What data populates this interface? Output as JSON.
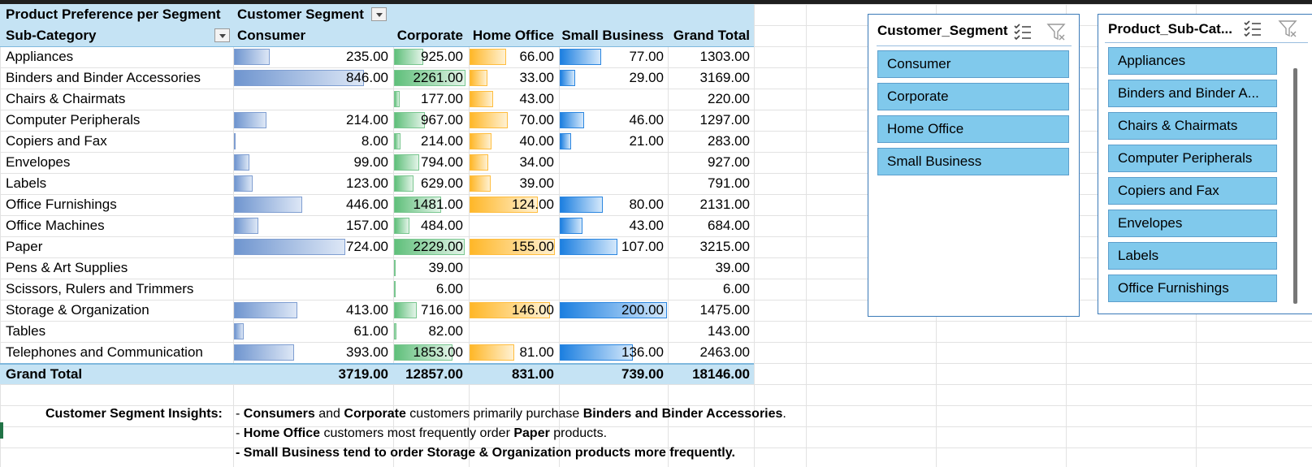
{
  "pivot": {
    "title": "Product Preference per Segment",
    "column_field": "Customer Segment",
    "row_field": "Sub-Category",
    "columns": [
      "Consumer",
      "Corporate",
      "Home Office",
      "Small Business",
      "Grand Total"
    ],
    "rows": [
      {
        "label": "Appliances",
        "consumer": "235.00",
        "corporate": "925.00",
        "home": "66.00",
        "small": "77.00",
        "total": "1303.00",
        "v": [
          235,
          925,
          66,
          77
        ]
      },
      {
        "label": "Binders and Binder Accessories",
        "consumer": "846.00",
        "corporate": "2261.00",
        "home": "33.00",
        "small": "29.00",
        "total": "3169.00",
        "v": [
          846,
          2261,
          33,
          29
        ]
      },
      {
        "label": "Chairs & Chairmats",
        "consumer": "",
        "corporate": "177.00",
        "home": "43.00",
        "small": "",
        "total": "220.00",
        "v": [
          0,
          177,
          43,
          0
        ]
      },
      {
        "label": "Computer Peripherals",
        "consumer": "214.00",
        "corporate": "967.00",
        "home": "70.00",
        "small": "46.00",
        "total": "1297.00",
        "v": [
          214,
          967,
          70,
          46
        ]
      },
      {
        "label": "Copiers and Fax",
        "consumer": "8.00",
        "corporate": "214.00",
        "home": "40.00",
        "small": "21.00",
        "total": "283.00",
        "v": [
          8,
          214,
          40,
          21
        ]
      },
      {
        "label": "Envelopes",
        "consumer": "99.00",
        "corporate": "794.00",
        "home": "34.00",
        "small": "",
        "total": "927.00",
        "v": [
          99,
          794,
          34,
          0
        ]
      },
      {
        "label": "Labels",
        "consumer": "123.00",
        "corporate": "629.00",
        "home": "39.00",
        "small": "",
        "total": "791.00",
        "v": [
          123,
          629,
          39,
          0
        ]
      },
      {
        "label": "Office Furnishings",
        "consumer": "446.00",
        "corporate": "1481.00",
        "home": "124.00",
        "small": "80.00",
        "total": "2131.00",
        "v": [
          446,
          1481,
          124,
          80
        ]
      },
      {
        "label": "Office Machines",
        "consumer": "157.00",
        "corporate": "484.00",
        "home": "",
        "small": "43.00",
        "total": "684.00",
        "v": [
          157,
          484,
          0,
          43
        ]
      },
      {
        "label": "Paper",
        "consumer": "724.00",
        "corporate": "2229.00",
        "home": "155.00",
        "small": "107.00",
        "total": "3215.00",
        "v": [
          724,
          2229,
          155,
          107
        ]
      },
      {
        "label": "Pens & Art Supplies",
        "consumer": "",
        "corporate": "39.00",
        "home": "",
        "small": "",
        "total": "39.00",
        "v": [
          0,
          39,
          0,
          0
        ]
      },
      {
        "label": "Scissors, Rulers and Trimmers",
        "consumer": "",
        "corporate": "6.00",
        "home": "",
        "small": "",
        "total": "6.00",
        "v": [
          0,
          6,
          0,
          0
        ]
      },
      {
        "label": "Storage & Organization",
        "consumer": "413.00",
        "corporate": "716.00",
        "home": "146.00",
        "small": "200.00",
        "total": "1475.00",
        "v": [
          413,
          716,
          146,
          200
        ]
      },
      {
        "label": "Tables",
        "consumer": "61.00",
        "corporate": "82.00",
        "home": "",
        "small": "",
        "total": "143.00",
        "v": [
          61,
          82,
          0,
          0
        ]
      },
      {
        "label": "Telephones and Communication",
        "consumer": "393.00",
        "corporate": "1853.00",
        "home": "81.00",
        "small": "136.00",
        "total": "2463.00",
        "v": [
          393,
          1853,
          81,
          136
        ]
      }
    ],
    "grand_total": {
      "label": "Grand Total",
      "consumer": "3719.00",
      "corporate": "12857.00",
      "home": "831.00",
      "small": "739.00",
      "total": "18146.00"
    },
    "bar_colors": {
      "consumer": "#6f95cf",
      "corporate": "#5fbf7a",
      "home": "#ffb728",
      "small": "#1c7fe0"
    }
  },
  "slicer_segment": {
    "title": "Customer_Segment",
    "items": [
      "Consumer",
      "Corporate",
      "Home Office",
      "Small Business"
    ],
    "icons": [
      "multi-select-icon",
      "clear-filter-icon"
    ]
  },
  "slicer_subcat": {
    "title": "Product_Sub-Cat...",
    "items": [
      "Appliances",
      "Binders and Binder A...",
      "Chairs & Chairmats",
      "Computer Peripherals",
      "Copiers and Fax",
      "Envelopes",
      "Labels",
      "Office Furnishings"
    ],
    "icons": [
      "multi-select-icon",
      "clear-filter-icon"
    ]
  },
  "insights": {
    "label": "Customer Segment Insights:",
    "line1": {
      "p1": "- ",
      "b1": "Consumers",
      "p2": " and ",
      "b2": "Corporate",
      "p3": " customers primarily purchase ",
      "b3": "Binders and Binder Accessories",
      "p4": "."
    },
    "line2": {
      "p1": "- ",
      "b1": "Home Office",
      "p2": " customers most frequently order ",
      "b2": "Paper",
      "p3": " products."
    },
    "line3": "- Small Business tend to order Storage & Organization products more frequently."
  }
}
